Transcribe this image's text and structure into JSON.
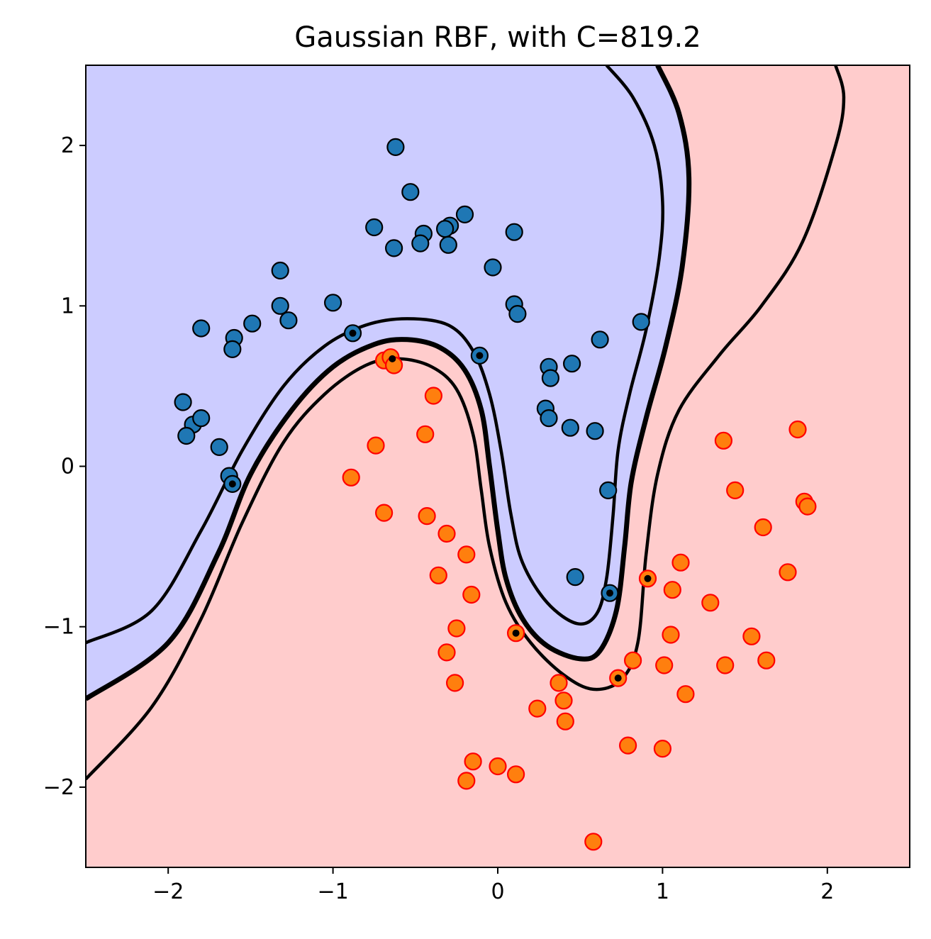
{
  "chart_data": {
    "type": "scatter",
    "title": "Gaussian RBF, with C=819.2",
    "xlabel": "",
    "ylabel": "",
    "xlim": [
      -2.5,
      2.5
    ],
    "ylim": [
      -2.5,
      2.5
    ],
    "xticks": [
      -2,
      -1,
      0,
      1,
      2
    ],
    "yticks": [
      -2,
      -1,
      0,
      1,
      2
    ],
    "xtick_labels": [
      "−2",
      "−1",
      "0",
      "1",
      "2"
    ],
    "ytick_labels": [
      "−2",
      "−1",
      "0",
      "1",
      "2"
    ],
    "grid": false,
    "legend": "none",
    "colors": {
      "region_positive": "#ccccff",
      "region_negative": "#ffcccc",
      "class_a_fill": "#1f77b4",
      "class_a_edge": "#000000",
      "class_b_fill": "#ff7f0e",
      "class_b_edge": "#ff0000",
      "boundary": "#000000",
      "support_vector_marker": "#000000"
    },
    "decision_boundary": [
      [
        -2.5,
        -1.45
      ],
      [
        -2.0,
        -1.1
      ],
      [
        -1.7,
        -0.55
      ],
      [
        -1.5,
        -0.05
      ],
      [
        -1.25,
        0.35
      ],
      [
        -1.0,
        0.62
      ],
      [
        -0.75,
        0.76
      ],
      [
        -0.55,
        0.79
      ],
      [
        -0.35,
        0.74
      ],
      [
        -0.2,
        0.6
      ],
      [
        -0.1,
        0.35
      ],
      [
        -0.05,
        0.0
      ],
      [
        0.0,
        -0.4
      ],
      [
        0.05,
        -0.7
      ],
      [
        0.15,
        -0.95
      ],
      [
        0.3,
        -1.12
      ],
      [
        0.5,
        -1.2
      ],
      [
        0.62,
        -1.15
      ],
      [
        0.72,
        -0.9
      ],
      [
        0.77,
        -0.5
      ],
      [
        0.81,
        -0.1
      ],
      [
        0.9,
        0.3
      ],
      [
        1.02,
        0.75
      ],
      [
        1.12,
        1.25
      ],
      [
        1.16,
        1.8
      ],
      [
        1.1,
        2.2
      ],
      [
        0.97,
        2.5
      ]
    ],
    "margin_upper": [
      [
        -2.5,
        -1.1
      ],
      [
        -2.1,
        -0.9
      ],
      [
        -1.8,
        -0.4
      ],
      [
        -1.55,
        0.1
      ],
      [
        -1.3,
        0.5
      ],
      [
        -1.05,
        0.75
      ],
      [
        -0.8,
        0.88
      ],
      [
        -0.55,
        0.92
      ],
      [
        -0.3,
        0.88
      ],
      [
        -0.15,
        0.72
      ],
      [
        -0.05,
        0.45
      ],
      [
        0.02,
        0.1
      ],
      [
        0.08,
        -0.3
      ],
      [
        0.15,
        -0.6
      ],
      [
        0.3,
        -0.85
      ],
      [
        0.48,
        -0.98
      ],
      [
        0.6,
        -0.92
      ],
      [
        0.66,
        -0.7
      ],
      [
        0.7,
        -0.3
      ],
      [
        0.73,
        0.1
      ],
      [
        0.8,
        0.45
      ],
      [
        0.9,
        0.85
      ],
      [
        0.98,
        1.3
      ],
      [
        1.0,
        1.65
      ],
      [
        0.95,
        2.0
      ],
      [
        0.82,
        2.3
      ],
      [
        0.66,
        2.5
      ]
    ],
    "margin_lower": [
      [
        -2.5,
        -1.95
      ],
      [
        -2.1,
        -1.5
      ],
      [
        -1.8,
        -0.95
      ],
      [
        -1.55,
        -0.35
      ],
      [
        -1.3,
        0.15
      ],
      [
        -1.05,
        0.45
      ],
      [
        -0.8,
        0.63
      ],
      [
        -0.6,
        0.67
      ],
      [
        -0.4,
        0.62
      ],
      [
        -0.25,
        0.48
      ],
      [
        -0.15,
        0.2
      ],
      [
        -0.1,
        -0.15
      ],
      [
        -0.05,
        -0.5
      ],
      [
        0.05,
        -0.85
      ],
      [
        0.2,
        -1.1
      ],
      [
        0.4,
        -1.3
      ],
      [
        0.58,
        -1.39
      ],
      [
        0.75,
        -1.33
      ],
      [
        0.85,
        -1.1
      ],
      [
        0.9,
        -0.55
      ],
      [
        0.97,
        -0.05
      ],
      [
        1.1,
        0.35
      ],
      [
        1.35,
        0.7
      ],
      [
        1.6,
        1.0
      ],
      [
        1.85,
        1.4
      ],
      [
        2.05,
        2.0
      ],
      [
        2.1,
        2.3
      ],
      [
        2.05,
        2.5
      ]
    ],
    "series": [
      {
        "class": "blue",
        "points": [
          [
            -0.62,
            1.99
          ],
          [
            -0.53,
            1.71
          ],
          [
            -0.2,
            1.57
          ],
          [
            -0.29,
            1.5
          ],
          [
            -0.75,
            1.49
          ],
          [
            -0.32,
            1.48
          ],
          [
            -0.45,
            1.45
          ],
          [
            0.1,
            1.46
          ],
          [
            -0.47,
            1.39
          ],
          [
            -0.63,
            1.36
          ],
          [
            -0.3,
            1.38
          ],
          [
            -0.03,
            1.24
          ],
          [
            -1.32,
            1.22
          ],
          [
            -1.32,
            1.0
          ],
          [
            -1.0,
            1.02
          ],
          [
            0.1,
            1.01
          ],
          [
            0.12,
            0.95
          ],
          [
            -1.27,
            0.91
          ],
          [
            -1.49,
            0.89
          ],
          [
            0.87,
            0.9
          ],
          [
            -1.8,
            0.86
          ],
          [
            -1.6,
            0.8
          ],
          [
            -0.88,
            0.83
          ],
          [
            -1.61,
            0.73
          ],
          [
            0.62,
            0.79
          ],
          [
            -0.11,
            0.69
          ],
          [
            0.31,
            0.62
          ],
          [
            0.45,
            0.64
          ],
          [
            0.32,
            0.55
          ],
          [
            -1.91,
            0.4
          ],
          [
            0.29,
            0.36
          ],
          [
            -1.85,
            0.26
          ],
          [
            -1.8,
            0.3
          ],
          [
            0.31,
            0.3
          ],
          [
            0.44,
            0.24
          ],
          [
            0.59,
            0.22
          ],
          [
            -1.89,
            0.19
          ],
          [
            -1.69,
            0.12
          ],
          [
            -1.63,
            -0.06
          ],
          [
            -1.61,
            -0.11
          ],
          [
            0.67,
            -0.15
          ],
          [
            0.47,
            -0.69
          ],
          [
            0.68,
            -0.79
          ]
        ]
      },
      {
        "class": "orange",
        "points": [
          [
            -0.69,
            0.66
          ],
          [
            -0.65,
            0.68
          ],
          [
            -0.63,
            0.63
          ],
          [
            -0.39,
            0.44
          ],
          [
            -0.44,
            0.2
          ],
          [
            -0.74,
            0.13
          ],
          [
            1.37,
            0.16
          ],
          [
            1.82,
            0.23
          ],
          [
            -0.89,
            -0.07
          ],
          [
            1.44,
            -0.15
          ],
          [
            1.86,
            -0.22
          ],
          [
            1.88,
            -0.25
          ],
          [
            -0.69,
            -0.29
          ],
          [
            -0.43,
            -0.31
          ],
          [
            1.61,
            -0.38
          ],
          [
            -0.31,
            -0.42
          ],
          [
            -0.19,
            -0.55
          ],
          [
            1.11,
            -0.6
          ],
          [
            -0.36,
            -0.68
          ],
          [
            1.76,
            -0.66
          ],
          [
            0.91,
            -0.7
          ],
          [
            1.06,
            -0.77
          ],
          [
            -0.16,
            -0.8
          ],
          [
            1.29,
            -0.85
          ],
          [
            -0.25,
            -1.01
          ],
          [
            0.11,
            -1.04
          ],
          [
            1.05,
            -1.05
          ],
          [
            1.54,
            -1.06
          ],
          [
            -0.31,
            -1.16
          ],
          [
            0.82,
            -1.21
          ],
          [
            1.63,
            -1.21
          ],
          [
            1.01,
            -1.24
          ],
          [
            1.38,
            -1.24
          ],
          [
            0.73,
            -1.32
          ],
          [
            0.37,
            -1.35
          ],
          [
            -0.26,
            -1.35
          ],
          [
            1.14,
            -1.42
          ],
          [
            0.4,
            -1.46
          ],
          [
            0.24,
            -1.51
          ],
          [
            0.41,
            -1.59
          ],
          [
            0.79,
            -1.74
          ],
          [
            1.0,
            -1.76
          ],
          [
            -0.15,
            -1.84
          ],
          [
            0.0,
            -1.87
          ],
          [
            -0.19,
            -1.96
          ],
          [
            0.11,
            -1.92
          ],
          [
            0.58,
            -2.34
          ]
        ]
      }
    ],
    "support_vectors": [
      [
        -0.88,
        0.83
      ],
      [
        -0.11,
        0.69
      ],
      [
        -1.61,
        -0.11
      ],
      [
        0.68,
        -0.79
      ],
      [
        -0.64,
        0.67
      ],
      [
        0.11,
        -1.04
      ],
      [
        0.91,
        -0.7
      ],
      [
        0.73,
        -1.32
      ]
    ]
  }
}
